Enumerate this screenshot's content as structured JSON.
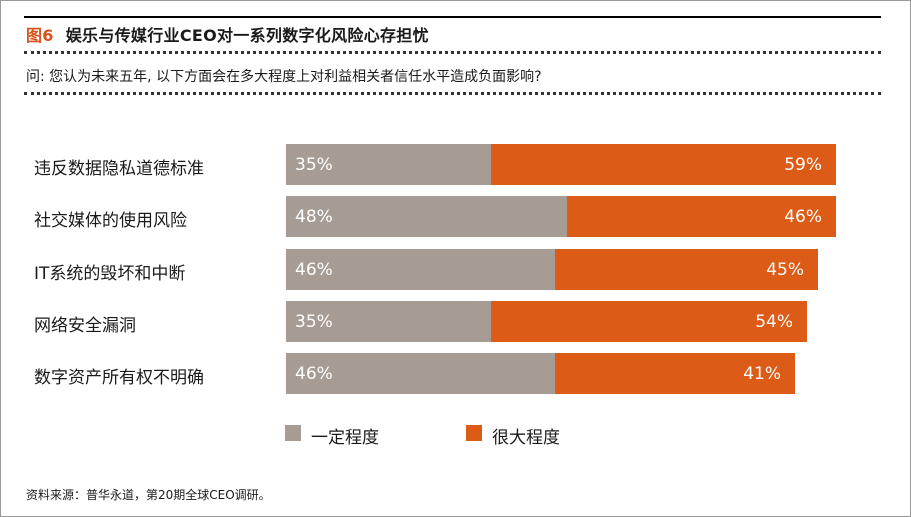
{
  "figure": {
    "label": "图6",
    "title": "娱乐与传媒行业CEO对一系列数字化风险心存担忧"
  },
  "question": "问: 您认为未来五年, 以下方面会在多大程度上对利益相关者信任水平造成负面影响?",
  "chart_data": {
    "type": "bar",
    "orientation": "horizontal",
    "stacked": true,
    "categories": [
      "违反数据隐私道德标准",
      "社交媒体的使用风险",
      "IT系统的毁坏和中断",
      "网络安全漏洞",
      "数字资产所有权不明确"
    ],
    "series": [
      {
        "name": "一定程度",
        "values": [
          35,
          48,
          46,
          35,
          46
        ],
        "labels": [
          "35%",
          "48%",
          "46%",
          "35%",
          "46%"
        ],
        "color": "#a79c93"
      },
      {
        "name": "很大程度",
        "values": [
          59,
          46,
          45,
          54,
          41
        ],
        "labels": [
          "59%",
          "46%",
          "45%",
          "54%",
          "41%"
        ],
        "color": "#dc5b16"
      }
    ],
    "unit": "%",
    "xlim": [
      0,
      100
    ],
    "legend_position": "bottom"
  },
  "source": "资料来源：普华永道，第20期全球CEO调研。"
}
